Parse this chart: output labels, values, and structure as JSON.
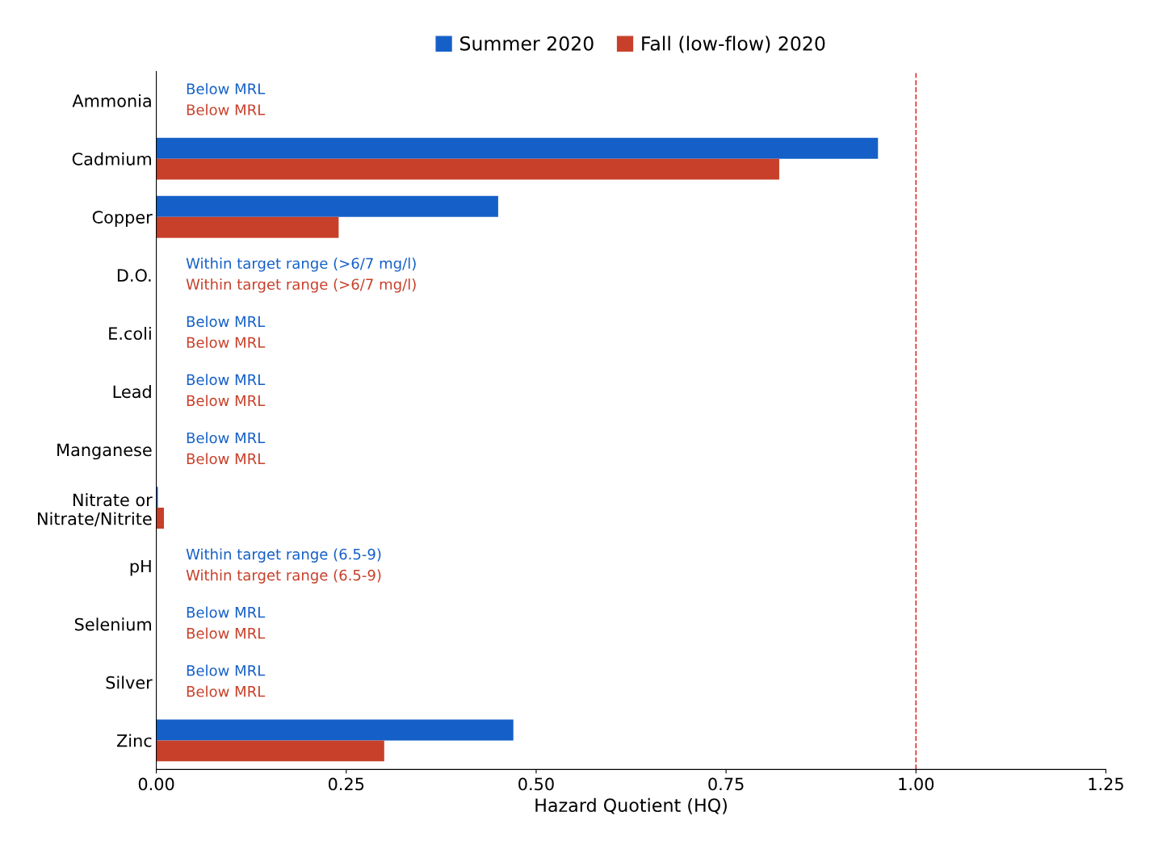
{
  "chart_data": {
    "type": "bar",
    "orientation": "horizontal",
    "xlabel": "Hazard Quotient (HQ)",
    "categories": [
      "Ammonia",
      "Cadmium",
      "Copper",
      "D.O.",
      "E.coli",
      "Lead",
      "Manganese",
      "Nitrate or\nNitrate/Nitrite",
      "pH",
      "Selenium",
      "Silver",
      "Zinc"
    ],
    "series": [
      {
        "name": "Summer 2020",
        "color": "#1560c8",
        "values": [
          null,
          0.95,
          0.45,
          null,
          null,
          null,
          null,
          0.002,
          null,
          null,
          null,
          0.47
        ],
        "value_labels": [
          "Below MRL",
          null,
          null,
          "Within target range (>6/7 mg/l)",
          "Below MRL",
          "Below MRL",
          "Below MRL",
          null,
          "Within target range (6.5-9)",
          "Below MRL",
          "Below MRL",
          null
        ]
      },
      {
        "name": "Fall (low-flow) 2020",
        "color": "#c8402a",
        "values": [
          null,
          0.82,
          0.24,
          null,
          null,
          null,
          null,
          0.01,
          null,
          null,
          null,
          0.3
        ],
        "value_labels": [
          "Below MRL",
          null,
          null,
          "Within target range (>6/7 mg/l)",
          "Below MRL",
          "Below MRL",
          "Below MRL",
          null,
          "Within target range (6.5-9)",
          "Below MRL",
          "Below MRL",
          null
        ]
      }
    ],
    "xlim": [
      0,
      1.25
    ],
    "xticks": [
      {
        "value": 0,
        "label": "0.00"
      },
      {
        "value": 0.25,
        "label": "0.25"
      },
      {
        "value": 0.5,
        "label": "0.50"
      },
      {
        "value": 0.75,
        "label": "0.75"
      },
      {
        "value": 1,
        "label": "1.00"
      },
      1.25
    ],
    "ref_lines": [
      {
        "axis": "x",
        "value": 1,
        "color": "#e03030",
        "line_style": "dashed"
      }
    ],
    "legend": "top",
    "grid": false
  }
}
